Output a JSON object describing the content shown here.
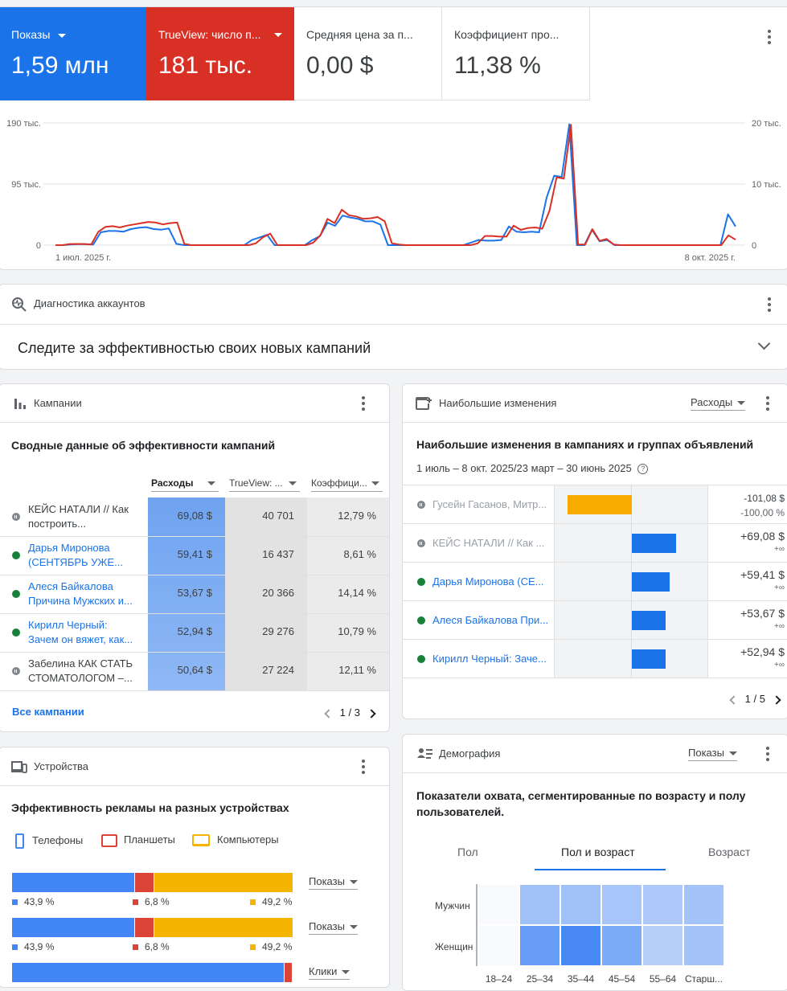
{
  "metrics": [
    {
      "label": "Показы",
      "value": "1,59 млн",
      "color": "#1a73e8",
      "has_dropdown": true
    },
    {
      "label": "TrueView: число п...",
      "value": "181 тыс.",
      "color": "#d93025",
      "has_dropdown": true
    },
    {
      "label": "Средняя цена за п...",
      "value": "0,00 $"
    },
    {
      "label": "Коэффициент про...",
      "value": "11,38 %"
    }
  ],
  "chart_data": {
    "type": "line",
    "x_start_label": "1 июл. 2025 г.",
    "x_end_label": "8 окт. 2025 г.",
    "y_left_ticks": [
      "190 тыс.",
      "95 тыс.",
      "0"
    ],
    "y_left_range": [
      0,
      190000
    ],
    "y_right_ticks": [
      "20 тыс.",
      "10 тыс.",
      "0"
    ],
    "y_right_range": [
      0,
      20000
    ],
    "grid": true,
    "series": [
      {
        "axis": "left",
        "color": "#1a73e8",
        "values": [
          0,
          0,
          1000,
          1500,
          1500,
          1000,
          20000,
          22000,
          22000,
          21000,
          25000,
          27000,
          28000,
          25000,
          24000,
          26000,
          2000,
          0,
          0,
          0,
          0,
          0,
          0,
          0,
          0,
          0,
          8000,
          12000,
          16000,
          0,
          0,
          0,
          0,
          0,
          8000,
          14000,
          35000,
          30000,
          46000,
          43000,
          41000,
          37000,
          37000,
          32000,
          0,
          0,
          0,
          0,
          0,
          0,
          0,
          0,
          0,
          0,
          0,
          4000,
          8000,
          7000,
          7000,
          8000,
          29000,
          21000,
          20000,
          21000,
          20000,
          74000,
          108000,
          106000,
          188000,
          0,
          0,
          24000,
          6000,
          8000,
          0,
          0,
          0,
          0,
          0,
          0,
          0,
          0,
          0,
          0,
          0,
          0,
          0,
          0,
          0,
          48000,
          29000
        ]
      },
      {
        "axis": "right",
        "color": "#d93025",
        "values": [
          0,
          0,
          180,
          200,
          180,
          100,
          2200,
          3000,
          3100,
          2900,
          3200,
          3400,
          3600,
          3800,
          3700,
          3400,
          3600,
          3700,
          200,
          0,
          0,
          0,
          0,
          0,
          0,
          0,
          0,
          0,
          300,
          1300,
          1900,
          0,
          0,
          0,
          0,
          0,
          400,
          1600,
          4300,
          3600,
          5800,
          4900,
          4700,
          4300,
          4400,
          4600,
          3900,
          300,
          100,
          0,
          0,
          0,
          0,
          0,
          0,
          0,
          0,
          0,
          0,
          300,
          1500,
          1500,
          1400,
          1400,
          3200,
          2500,
          2800,
          2900,
          2700,
          5600,
          11100,
          10900,
          19700,
          100,
          100,
          2600,
          700,
          1000,
          100,
          0,
          0,
          0,
          0,
          0,
          0,
          0,
          0,
          0,
          0,
          0,
          0,
          0,
          0,
          0,
          1600,
          900
        ]
      }
    ]
  },
  "diagnostics": {
    "title": "Диагностика аккаунтов",
    "banner": "Следите за эффективностью своих новых кампаний"
  },
  "campaigns": {
    "title": "Кампании",
    "subtitle": "Сводные данные об эффективности кампаний",
    "columns": [
      "Расходы",
      "TrueView: ...",
      "Коэффици..."
    ],
    "rows": [
      {
        "name1": "КЕЙС НАТАЛИ // Как",
        "name2": "построить...",
        "status": "paused",
        "spend": "69,08 $",
        "views": "40 701",
        "rate": "12,79 %"
      },
      {
        "name1": "Дарья Миронова",
        "name2": "(СЕНТЯБРЬ УЖЕ...",
        "status": "active",
        "spend": "59,41 $",
        "views": "16 437",
        "rate": "8,61 %"
      },
      {
        "name1": "Алеся Байкалова",
        "name2": "Причина Мужских и...",
        "status": "active",
        "spend": "53,67 $",
        "views": "20 366",
        "rate": "14,14 %"
      },
      {
        "name1": "Кирилл Черный:",
        "name2": "Зачем он вяжет, как...",
        "status": "active",
        "spend": "52,94 $",
        "views": "29 276",
        "rate": "10,79 %"
      },
      {
        "name1": "Забелина КАК СТАТЬ",
        "name2": "СТОМАТОЛОГОМ –...",
        "status": "paused",
        "spend": "50,64 $",
        "views": "27 224",
        "rate": "12,11 %"
      }
    ],
    "all_link": "Все кампании",
    "pager": "1 / 3"
  },
  "changes": {
    "title": "Наибольшие изменения",
    "dropdown": "Расходы",
    "subtitle": "Наибольшие изменения в кампаниях и группах объявлений",
    "period": "1 июль – 8 окт. 2025/23 март – 30 июнь 2025",
    "rows": [
      {
        "name": "Гусейн Гасанов, Митр...",
        "status": "paused",
        "change": -101.08,
        "delta": "-101,08 $",
        "pct": "-100,00 %"
      },
      {
        "name": "КЕЙС НАТАЛИ // Как ...",
        "status": "paused",
        "change": 69.08,
        "delta": "+69,08 $",
        "pct": "+∞"
      },
      {
        "name": "Дарья Миронова (СЕ...",
        "status": "active",
        "change": 59.41,
        "delta": "+59,41 $",
        "pct": "+∞"
      },
      {
        "name": "Алеся Байкалова При...",
        "status": "active",
        "change": 53.67,
        "delta": "+53,67 $",
        "pct": "+∞"
      },
      {
        "name": "Кирилл Черный: Заче...",
        "status": "active",
        "change": 52.94,
        "delta": "+52,94 $",
        "pct": "+∞"
      }
    ],
    "pager": "1 / 5"
  },
  "devices": {
    "title": "Устройства",
    "subtitle": "Эффективность рекламы на разных устройствах",
    "legend": [
      "Телефоны",
      "Планшеты",
      "Компьютеры"
    ],
    "colors": [
      "#4285f4",
      "#db4437",
      "#f4b400"
    ],
    "bars": [
      {
        "metric": "Показы",
        "values": [
          43.9,
          6.8,
          49.2
        ],
        "labels": [
          "43,9 %",
          "6,8 %",
          "49,2 %"
        ]
      },
      {
        "metric": "Показы",
        "values": [
          43.9,
          6.8,
          49.2
        ],
        "labels": [
          "43,9 %",
          "6,8 %",
          "49,2 %"
        ]
      },
      {
        "metric": "Клики",
        "values": [
          97.0,
          3.0,
          0
        ],
        "labels": [
          "",
          "",
          ""
        ]
      }
    ]
  },
  "demographics": {
    "title": "Демография",
    "dropdown": "Показы",
    "subtitle_line1": "Показатели охвата, сегментированные по возрасту и полу",
    "subtitle_line2": "пользователей.",
    "tabs": [
      "Пол",
      "Пол и возраст",
      "Возраст"
    ],
    "active_tab": 1,
    "rows": [
      "Мужчин",
      "Женщин"
    ],
    "cols": [
      "18–24",
      "25–34",
      "35–44",
      "45–54",
      "55–64",
      "Старш..."
    ],
    "heat": [
      [
        0.0,
        0.28,
        0.28,
        0.22,
        0.18,
        0.25
      ],
      [
        0.0,
        0.72,
        0.95,
        0.55,
        0.1,
        0.25
      ]
    ]
  }
}
